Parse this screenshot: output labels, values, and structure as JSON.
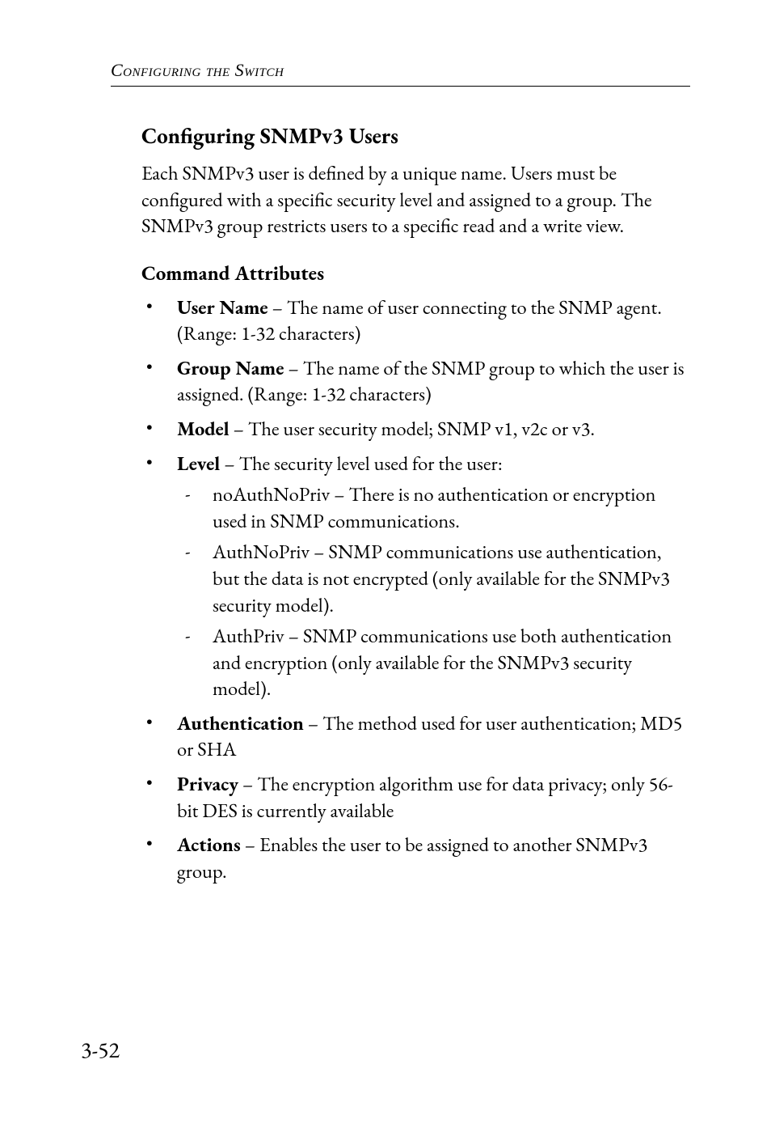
{
  "runningHead": "Configuring the Switch",
  "h2": "Configuring SNMPv3 Users",
  "intro": "Each SNMPv3 user is defined by a unique name. Users must be configured with a specific security level and assigned to a group. The SNMPv3 group restricts users to a specific read and a write view.",
  "h3": "Command Attributes",
  "items": [
    {
      "term": "User Name",
      "rest": " – The name of user connecting to the SNMP agent. (Range: 1-32 characters)"
    },
    {
      "term": "Group Name",
      "rest": " – The name of the SNMP group to which the user is assigned. (Range: 1-32 characters)"
    },
    {
      "term": "Model",
      "rest": " – The user security model; SNMP v1, v2c or v3."
    },
    {
      "term": "Level",
      "rest": " – The security level used for the user:",
      "sub": [
        "noAuthNoPriv – There is no authentication or encryption used in SNMP communications.",
        "AuthNoPriv – SNMP communications use authentication, but the data is not encrypted (only available for the SNMPv3 security model).",
        "AuthPriv – SNMP communications use both authentication and encryption (only available for the SNMPv3 security model)."
      ]
    },
    {
      "term": "Authentication",
      "rest": " – The method used for user authentication; MD5 or SHA"
    },
    {
      "term": "Privacy",
      "rest": " – The encryption algorithm use for data privacy; only 56-bit DES is currently available"
    },
    {
      "term": "Actions",
      "rest": " – Enables the user to be assigned to another SNMPv3 group."
    }
  ],
  "pageNumber": "3-52"
}
